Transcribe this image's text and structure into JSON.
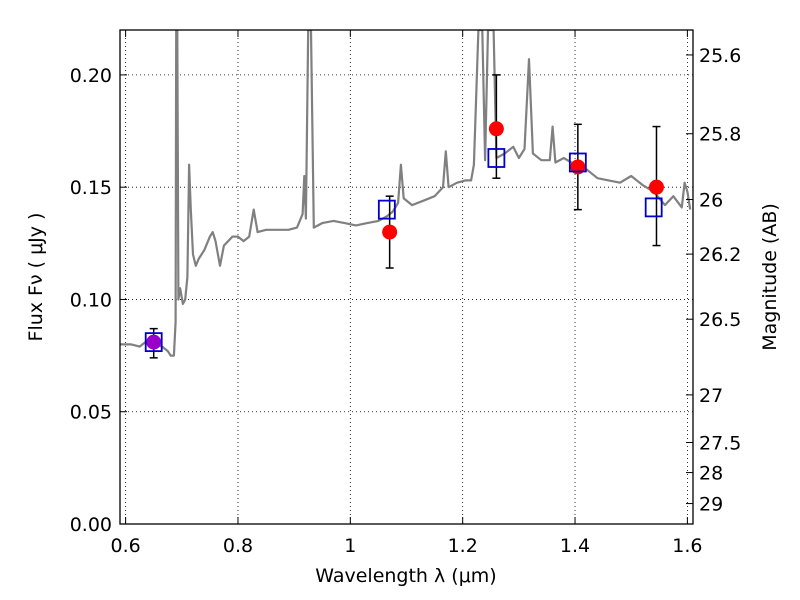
{
  "chart_data": {
    "type": "line",
    "xlabel": "Wavelength  λ (μm)",
    "ylabel": "Flux  Fν  ( μJy )",
    "ylabel_right": "Magnitude (AB)",
    "xlim": [
      0.59,
      1.61
    ],
    "ylim": [
      0.0,
      0.22
    ],
    "grid": true,
    "x_ticks": [
      0.6,
      0.8,
      1.0,
      1.2,
      1.4,
      1.6
    ],
    "x_tick_labels": [
      "0.6",
      "0.8",
      "1",
      "1.2",
      "1.4",
      "1.6"
    ],
    "y_ticks": [
      0.0,
      0.05,
      0.1,
      0.15,
      0.2
    ],
    "y_tick_labels": [
      "0.00",
      "0.05",
      "0.10",
      "0.15",
      "0.20"
    ],
    "mag_ticks": [
      {
        "label": "25.6",
        "flux": 0.2089
      },
      {
        "label": "25.8",
        "flux": 0.1738
      },
      {
        "label": "26",
        "flux": 0.1445
      },
      {
        "label": "26.2",
        "flux": 0.1202
      },
      {
        "label": "26.5",
        "flux": 0.0912
      },
      {
        "label": "27",
        "flux": 0.0575
      },
      {
        "label": "27.5",
        "flux": 0.0363
      },
      {
        "label": "28",
        "flux": 0.0229
      },
      {
        "label": "29",
        "flux": 0.0091
      }
    ],
    "series": [
      {
        "style": "spectrum",
        "color": "#808080",
        "points": [
          [
            0.59,
            0.08
          ],
          [
            0.61,
            0.08
          ],
          [
            0.625,
            0.079
          ],
          [
            0.635,
            0.081
          ],
          [
            0.645,
            0.08
          ],
          [
            0.655,
            0.08
          ],
          [
            0.665,
            0.079
          ],
          [
            0.675,
            0.077
          ],
          [
            0.68,
            0.075
          ],
          [
            0.686,
            0.075
          ],
          [
            0.689,
            0.09
          ],
          [
            0.69,
            0.22
          ],
          [
            0.692,
            0.22
          ],
          [
            0.694,
            0.1
          ],
          [
            0.697,
            0.105
          ],
          [
            0.702,
            0.098
          ],
          [
            0.706,
            0.1
          ],
          [
            0.71,
            0.11
          ],
          [
            0.713,
            0.16
          ],
          [
            0.716,
            0.14
          ],
          [
            0.72,
            0.12
          ],
          [
            0.725,
            0.115
          ],
          [
            0.73,
            0.118
          ],
          [
            0.74,
            0.122
          ],
          [
            0.75,
            0.128
          ],
          [
            0.755,
            0.13
          ],
          [
            0.76,
            0.126
          ],
          [
            0.768,
            0.115
          ],
          [
            0.775,
            0.124
          ],
          [
            0.79,
            0.128
          ],
          [
            0.8,
            0.128
          ],
          [
            0.81,
            0.126
          ],
          [
            0.82,
            0.128
          ],
          [
            0.828,
            0.14
          ],
          [
            0.835,
            0.13
          ],
          [
            0.85,
            0.131
          ],
          [
            0.87,
            0.131
          ],
          [
            0.89,
            0.131
          ],
          [
            0.905,
            0.132
          ],
          [
            0.915,
            0.138
          ],
          [
            0.918,
            0.155
          ],
          [
            0.921,
            0.136
          ],
          [
            0.925,
            0.22
          ],
          [
            0.93,
            0.22
          ],
          [
            0.935,
            0.132
          ],
          [
            0.95,
            0.134
          ],
          [
            0.97,
            0.135
          ],
          [
            0.99,
            0.134
          ],
          [
            1.01,
            0.133
          ],
          [
            1.03,
            0.134
          ],
          [
            1.05,
            0.135
          ],
          [
            1.065,
            0.137
          ],
          [
            1.075,
            0.139
          ],
          [
            1.085,
            0.143
          ],
          [
            1.09,
            0.16
          ],
          [
            1.095,
            0.145
          ],
          [
            1.11,
            0.142
          ],
          [
            1.13,
            0.144
          ],
          [
            1.15,
            0.146
          ],
          [
            1.165,
            0.15
          ],
          [
            1.17,
            0.166
          ],
          [
            1.175,
            0.15
          ],
          [
            1.19,
            0.152
          ],
          [
            1.205,
            0.153
          ],
          [
            1.215,
            0.153
          ],
          [
            1.22,
            0.16
          ],
          [
            1.228,
            0.22
          ],
          [
            1.235,
            0.22
          ],
          [
            1.24,
            0.162
          ],
          [
            1.245,
            0.22
          ],
          [
            1.255,
            0.22
          ],
          [
            1.26,
            0.163
          ],
          [
            1.275,
            0.165
          ],
          [
            1.29,
            0.168
          ],
          [
            1.3,
            0.163
          ],
          [
            1.31,
            0.167
          ],
          [
            1.318,
            0.207
          ],
          [
            1.325,
            0.165
          ],
          [
            1.34,
            0.162
          ],
          [
            1.355,
            0.162
          ],
          [
            1.36,
            0.177
          ],
          [
            1.365,
            0.161
          ],
          [
            1.38,
            0.163
          ],
          [
            1.4,
            0.16
          ],
          [
            1.42,
            0.158
          ],
          [
            1.44,
            0.154
          ],
          [
            1.46,
            0.153
          ],
          [
            1.48,
            0.152
          ],
          [
            1.5,
            0.155
          ],
          [
            1.52,
            0.151
          ],
          [
            1.54,
            0.148
          ],
          [
            1.56,
            0.142
          ],
          [
            1.575,
            0.146
          ],
          [
            1.59,
            0.141
          ],
          [
            1.595,
            0.152
          ],
          [
            1.6,
            0.148
          ],
          [
            1.605,
            0.14
          ]
        ]
      },
      {
        "style": "model_photometry",
        "color": "#0000cc",
        "marker": "square",
        "points": [
          [
            0.65,
            0.081
          ],
          [
            1.065,
            0.14
          ],
          [
            1.26,
            0.163
          ],
          [
            1.405,
            0.161
          ],
          [
            1.54,
            0.141
          ]
        ]
      },
      {
        "style": "observed",
        "color": "#ff0000",
        "first_point_color": "#9900cc",
        "marker": "circle",
        "points": [
          {
            "x": 0.65,
            "y": 0.081,
            "yerr": [
              0.074,
              0.087
            ]
          },
          {
            "x": 1.07,
            "y": 0.13,
            "yerr": [
              0.114,
              0.146
            ]
          },
          {
            "x": 1.26,
            "y": 0.176,
            "yerr": [
              0.154,
              0.2
            ]
          },
          {
            "x": 1.405,
            "y": 0.159,
            "yerr": [
              0.14,
              0.178
            ]
          },
          {
            "x": 1.545,
            "y": 0.15,
            "yerr": [
              0.124,
              0.177
            ]
          }
        ]
      }
    ]
  }
}
